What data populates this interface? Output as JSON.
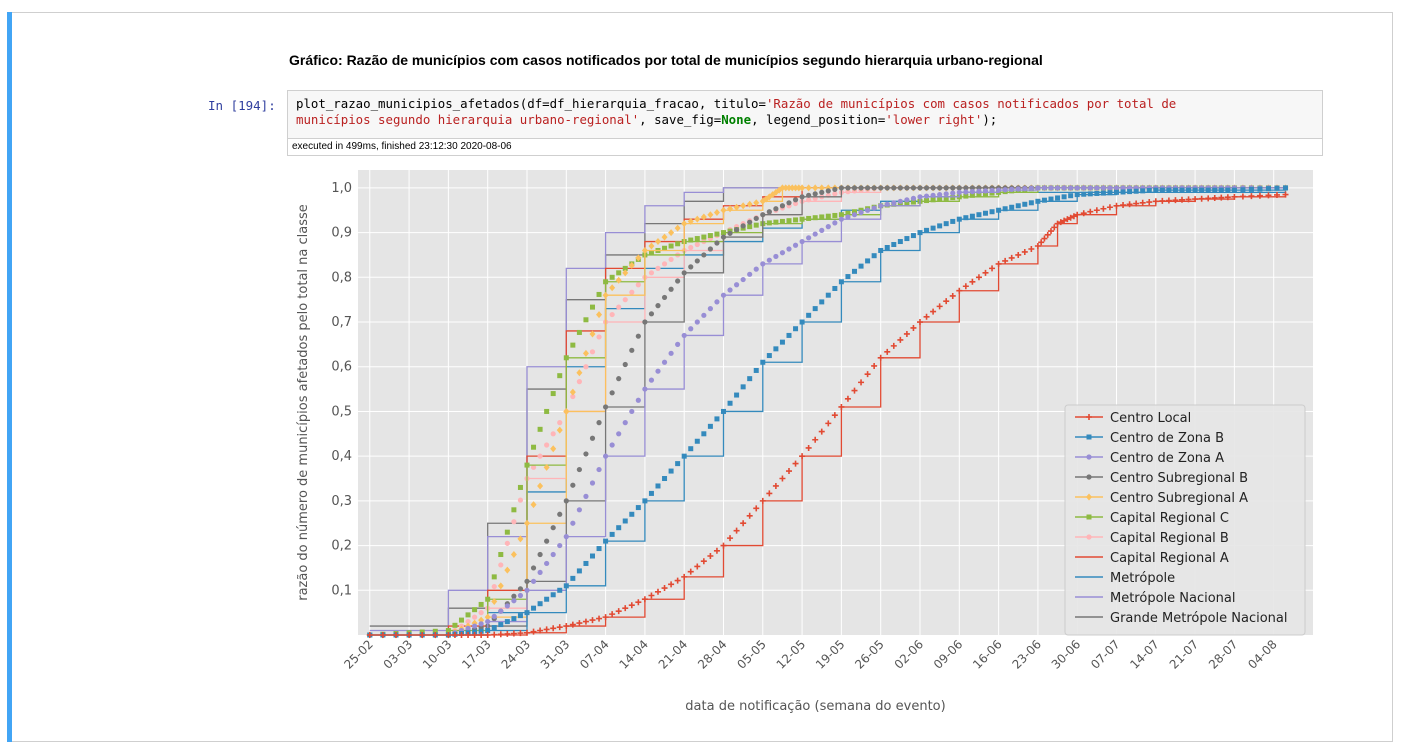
{
  "cell": {
    "markdown_title": "Gráfico: Razão de municípios com casos notificados por total de municípios segundo hierarquia urbano-regional",
    "prompt": "In [194]:",
    "code": {
      "line1_a": "plot_razao_municipios_afetados(df=df_hierarquia_fracao, titulo=",
      "line1_str": "'Razão de municípios com casos notificados por total de",
      "line2_str": "municípios segundo hierarquia urbano-regional'",
      "line2_b": ", save_fig=",
      "line2_kw": "None",
      "line2_c": ", legend_position=",
      "line2_str2": "'lower right'",
      "line2_d": ");"
    },
    "timing": "executed in 499ms, finished 23:12:30 2020-08-06"
  },
  "colors": {
    "accent": "#42a5f5",
    "plot_bg": "#e5e5e5"
  },
  "chart_data": {
    "type": "line",
    "title": "",
    "xlabel": "data de notificação (semana do evento)",
    "ylabel": "razão do número de municípios afetados pelo total na classe",
    "x_ticks": [
      "25-02",
      "03-03",
      "10-03",
      "17-03",
      "24-03",
      "31-03",
      "07-04",
      "14-04",
      "21-04",
      "28-04",
      "05-05",
      "12-05",
      "19-05",
      "26-05",
      "02-06",
      "09-06",
      "16-06",
      "23-06",
      "30-06",
      "07-07",
      "14-07",
      "21-07",
      "28-07",
      "04-08"
    ],
    "y_ticks": [
      "0,1",
      "0,2",
      "0,3",
      "0,4",
      "0,5",
      "0,6",
      "0,7",
      "0,8",
      "0,9",
      "1,0"
    ],
    "ylim": [
      0,
      1.04
    ],
    "legend_position": "lower right",
    "grid": true,
    "series": [
      {
        "name": "Centro Local",
        "color": "#e24a33",
        "marker": "plus",
        "x": [
          0,
          2,
          3,
          4,
          5,
          6,
          7,
          8,
          9,
          10,
          11,
          12,
          13,
          14,
          15,
          16,
          17,
          17.5,
          18,
          19,
          20,
          21,
          22,
          23.3
        ],
        "y": [
          0,
          0,
          0,
          0.005,
          0.02,
          0.04,
          0.08,
          0.13,
          0.2,
          0.3,
          0.4,
          0.51,
          0.62,
          0.7,
          0.77,
          0.83,
          0.87,
          0.92,
          0.94,
          0.96,
          0.97,
          0.975,
          0.98,
          0.985
        ]
      },
      {
        "name": "Centro de Zona B",
        "color": "#348abd",
        "marker": "square",
        "x": [
          0,
          2,
          3,
          4,
          5,
          6,
          7,
          8,
          9,
          10,
          11,
          12,
          13,
          14,
          15,
          16,
          17,
          18,
          19,
          20,
          21,
          22,
          23.3
        ],
        "y": [
          0,
          0,
          0.01,
          0.05,
          0.11,
          0.21,
          0.3,
          0.4,
          0.5,
          0.61,
          0.7,
          0.79,
          0.86,
          0.9,
          0.93,
          0.95,
          0.97,
          0.985,
          0.99,
          0.995,
          0.995,
          0.995,
          1.0
        ]
      },
      {
        "name": "Centro de Zona A",
        "color": "#988ed5",
        "marker": "circle",
        "x": [
          0,
          2,
          3,
          4,
          5,
          6,
          7,
          8,
          9,
          10,
          11,
          12,
          13,
          14,
          15,
          16,
          17,
          18,
          19,
          20,
          21,
          22,
          23.3
        ],
        "y": [
          0,
          0,
          0.03,
          0.1,
          0.22,
          0.4,
          0.55,
          0.67,
          0.76,
          0.83,
          0.88,
          0.93,
          0.96,
          0.98,
          0.99,
          0.995,
          1.0,
          1.0,
          1.0,
          1.0,
          1.0,
          1.0,
          1.0
        ]
      },
      {
        "name": "Centro Subregional B",
        "color": "#777777",
        "marker": "circle",
        "x": [
          0,
          2,
          3,
          4,
          5,
          6,
          7,
          8,
          9,
          10,
          11,
          12,
          13,
          14,
          15,
          16,
          17,
          18,
          19,
          20,
          21,
          22,
          23.3
        ],
        "y": [
          0,
          0,
          0.02,
          0.12,
          0.3,
          0.51,
          0.7,
          0.81,
          0.89,
          0.94,
          0.98,
          1.0,
          1.0,
          1.0,
          1.0,
          1.0,
          1.0,
          1.0,
          1.0,
          1.0,
          1.0,
          1.0,
          1.0
        ]
      },
      {
        "name": "Centro Subregional A",
        "color": "#fbc15e",
        "marker": "diamond",
        "x": [
          0,
          2,
          3,
          4,
          5,
          6,
          7,
          8,
          9,
          10,
          10.5,
          11,
          12,
          13,
          14,
          15,
          16,
          17,
          18,
          19,
          20,
          21,
          22,
          23.3
        ],
        "y": [
          0,
          0,
          0.04,
          0.25,
          0.5,
          0.76,
          0.86,
          0.92,
          0.95,
          0.97,
          1.0,
          1.0,
          1.0,
          1.0,
          1.0,
          1.0,
          1.0,
          1.0,
          1.0,
          1.0,
          1.0,
          1.0,
          1.0,
          1.0
        ]
      },
      {
        "name": "Capital Regional C",
        "color": "#8eba42",
        "marker": "square",
        "x": [
          0,
          2,
          3,
          4,
          5,
          6,
          7,
          8,
          9,
          10,
          11,
          12,
          13,
          14,
          15,
          16,
          17,
          18,
          19,
          20,
          21,
          22,
          23.3
        ],
        "y": [
          0,
          0.01,
          0.08,
          0.38,
          0.62,
          0.79,
          0.85,
          0.88,
          0.9,
          0.92,
          0.93,
          0.94,
          0.96,
          0.97,
          0.98,
          0.99,
          1.0,
          1.0,
          1.0,
          1.0,
          1.0,
          1.0,
          1.0
        ]
      },
      {
        "name": "Capital Regional B",
        "color": "#ffb5b8",
        "marker": "circle",
        "x": [
          0,
          2,
          3,
          4,
          5,
          6,
          7,
          8,
          9,
          10,
          11,
          12,
          13,
          14,
          15,
          16,
          17,
          18,
          19,
          20,
          21,
          22,
          23.3
        ],
        "y": [
          0,
          0,
          0.06,
          0.35,
          0.5,
          0.7,
          0.8,
          0.86,
          0.9,
          0.94,
          0.97,
          0.99,
          1.0,
          1.0,
          1.0,
          1.0,
          1.0,
          1.0,
          1.0,
          1.0,
          1.0,
          1.0,
          1.0
        ]
      },
      {
        "name": "Capital Regional A",
        "color": "#e24a33",
        "marker": "none",
        "x": [
          0,
          2,
          3,
          4,
          5,
          6,
          7,
          8,
          9,
          10,
          11,
          12,
          13,
          14,
          15,
          16,
          17,
          18,
          19,
          20,
          21,
          22,
          23.3
        ],
        "y": [
          0,
          0.02,
          0.1,
          0.4,
          0.68,
          0.82,
          0.88,
          0.93,
          0.96,
          0.98,
          1.0,
          1.0,
          1.0,
          1.0,
          1.0,
          1.0,
          1.0,
          1.0,
          1.0,
          1.0,
          1.0,
          1.0,
          1.0
        ]
      },
      {
        "name": "Metrópole",
        "color": "#348abd",
        "marker": "none",
        "x": [
          0,
          2,
          3,
          4,
          5,
          6,
          7,
          8,
          9,
          10,
          11,
          12,
          13,
          14,
          15,
          16,
          17,
          18,
          19,
          20,
          21,
          22,
          23.3
        ],
        "y": [
          0,
          0,
          0.05,
          0.32,
          0.6,
          0.73,
          0.82,
          0.85,
          0.88,
          0.91,
          0.93,
          0.95,
          0.97,
          0.98,
          0.99,
          0.99,
          0.99,
          0.99,
          0.99,
          0.99,
          0.99,
          0.99,
          1.0
        ]
      },
      {
        "name": "Metrópole Nacional",
        "color": "#988ed5",
        "marker": "none",
        "x": [
          0,
          2,
          3,
          4,
          5,
          6,
          7,
          8,
          9,
          10,
          11,
          12,
          13,
          14,
          15,
          16,
          17,
          18,
          19,
          20,
          21,
          22,
          23.3
        ],
        "y": [
          0.01,
          0.1,
          0.22,
          0.6,
          0.82,
          0.9,
          0.96,
          0.99,
          1.0,
          1.0,
          1.0,
          1.0,
          1.0,
          1.0,
          1.0,
          1.0,
          1.0,
          1.0,
          1.0,
          1.0,
          1.0,
          1.0,
          1.0
        ]
      },
      {
        "name": "Grande Metrópole Nacional",
        "color": "#777777",
        "marker": "none",
        "x": [
          0,
          2,
          3,
          4,
          5,
          6,
          7,
          8,
          9,
          10,
          11,
          12,
          13,
          14,
          15,
          16,
          17,
          18,
          19,
          20,
          21,
          22,
          23.3
        ],
        "y": [
          0.02,
          0.06,
          0.25,
          0.55,
          0.75,
          0.85,
          0.92,
          0.97,
          1.0,
          1.0,
          1.0,
          1.0,
          1.0,
          1.0,
          1.0,
          1.0,
          1.0,
          1.0,
          1.0,
          1.0,
          1.0,
          1.0,
          1.0
        ]
      }
    ]
  }
}
